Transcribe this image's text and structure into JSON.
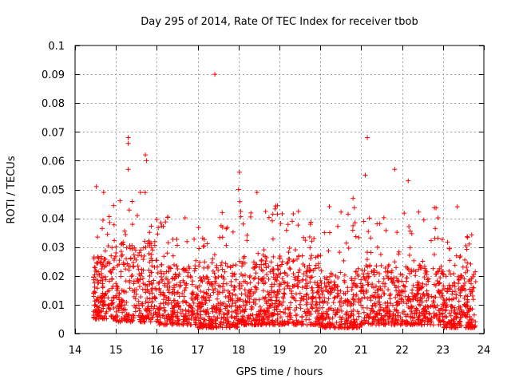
{
  "chart_data": {
    "type": "scatter",
    "title": "Day 295 of 2014, Rate Of TEC Index for receiver tbob",
    "xlabel": "GPS time / hours",
    "ylabel": "ROTI / TECUs",
    "xlim": [
      14,
      24
    ],
    "ylim": [
      0,
      0.1
    ],
    "grid": true,
    "marker": "+",
    "color": "#ff0000",
    "x_ticks": [
      "14",
      "15",
      "16",
      "17",
      "18",
      "19",
      "20",
      "21",
      "22",
      "23",
      "24"
    ],
    "y_ticks": [
      "0",
      "0.01",
      "0.02",
      "0.03",
      "0.04",
      "0.05",
      "0.06",
      "0.07",
      "0.08",
      "0.09",
      "0.1"
    ],
    "x_tick_values": [
      14,
      15,
      16,
      17,
      18,
      19,
      20,
      21,
      22,
      23,
      24
    ],
    "y_tick_values": [
      0,
      0.01,
      0.02,
      0.03,
      0.04,
      0.05,
      0.06,
      0.07,
      0.08,
      0.09,
      0.1
    ],
    "x_range_of_data": [
      14.45,
      23.8
    ],
    "notable_points": [
      {
        "x": 17.42,
        "y": 0.09
      },
      {
        "x": 21.15,
        "y": 0.068
      },
      {
        "x": 15.3,
        "y": 0.068
      },
      {
        "x": 15.3,
        "y": 0.066
      },
      {
        "x": 15.72,
        "y": 0.062
      },
      {
        "x": 15.75,
        "y": 0.06
      },
      {
        "x": 15.3,
        "y": 0.057
      },
      {
        "x": 18.02,
        "y": 0.056
      },
      {
        "x": 21.82,
        "y": 0.057
      },
      {
        "x": 21.1,
        "y": 0.055
      },
      {
        "x": 22.15,
        "y": 0.053
      },
      {
        "x": 14.52,
        "y": 0.051
      },
      {
        "x": 18.0,
        "y": 0.05
      },
      {
        "x": 15.6,
        "y": 0.049
      },
      {
        "x": 14.7,
        "y": 0.049
      },
      {
        "x": 18.45,
        "y": 0.049
      },
      {
        "x": 20.8,
        "y": 0.047
      },
      {
        "x": 23.35,
        "y": 0.044
      },
      {
        "x": 17.6,
        "y": 0.042
      },
      {
        "x": 20.1,
        "y": 0.035
      }
    ],
    "density_profile": [
      {
        "x_start": 14.45,
        "x_end": 15.0,
        "y_min": 0.005,
        "y_core": 0.025,
        "y_max": 0.045
      },
      {
        "x_start": 15.0,
        "x_end": 16.0,
        "y_min": 0.004,
        "y_core": 0.03,
        "y_max": 0.05
      },
      {
        "x_start": 16.0,
        "x_end": 17.0,
        "y_min": 0.003,
        "y_core": 0.022,
        "y_max": 0.042
      },
      {
        "x_start": 17.0,
        "x_end": 18.0,
        "y_min": 0.002,
        "y_core": 0.022,
        "y_max": 0.038
      },
      {
        "x_start": 18.0,
        "x_end": 19.0,
        "y_min": 0.003,
        "y_core": 0.025,
        "y_max": 0.048
      },
      {
        "x_start": 19.0,
        "x_end": 20.0,
        "y_min": 0.003,
        "y_core": 0.025,
        "y_max": 0.045
      },
      {
        "x_start": 20.0,
        "x_end": 21.0,
        "y_min": 0.002,
        "y_core": 0.02,
        "y_max": 0.045
      },
      {
        "x_start": 21.0,
        "x_end": 22.0,
        "y_min": 0.003,
        "y_core": 0.022,
        "y_max": 0.042
      },
      {
        "x_start": 22.0,
        "x_end": 23.0,
        "y_min": 0.003,
        "y_core": 0.022,
        "y_max": 0.045
      },
      {
        "x_start": 23.0,
        "x_end": 23.8,
        "y_min": 0.002,
        "y_core": 0.02,
        "y_max": 0.037
      }
    ],
    "sample_count": 2600
  }
}
